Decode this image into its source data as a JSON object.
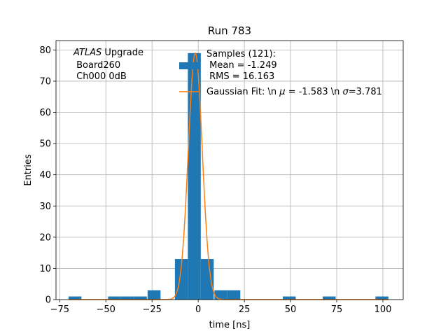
{
  "chart_data": {
    "type": "bar",
    "title": "Run 783",
    "xlabel": "time [ns]",
    "ylabel": "Entries",
    "xlim": [
      -77,
      111
    ],
    "ylim": [
      0,
      83
    ],
    "xticks": [
      -75,
      -50,
      -25,
      0,
      25,
      50,
      75,
      100
    ],
    "xtick_labels": [
      "−75",
      "−50",
      "−25",
      "0",
      "25",
      "50",
      "75",
      "100"
    ],
    "yticks": [
      0,
      10,
      20,
      30,
      40,
      50,
      60,
      70,
      80
    ],
    "ytick_labels": [
      "0",
      "10",
      "20",
      "30",
      "40",
      "50",
      "60",
      "70",
      "80"
    ],
    "grid": true,
    "legend_position": "top-right",
    "histogram": {
      "name": "Samples (121):",
      "color": "#1f77b4",
      "bins": [
        {
          "x0": -70.2,
          "x1": -63.2,
          "count": 1
        },
        {
          "x0": -48.8,
          "x1": -41.8,
          "count": 1
        },
        {
          "x0": -41.8,
          "x1": -34.8,
          "count": 1
        },
        {
          "x0": -34.8,
          "x1": -27.8,
          "count": 1
        },
        {
          "x0": -27.4,
          "x1": -20.4,
          "count": 3
        },
        {
          "x0": -12.6,
          "x1": -5.6,
          "count": 13
        },
        {
          "x0": -5.6,
          "x1": 1.4,
          "count": 79
        },
        {
          "x0": 1.4,
          "x1": 8.4,
          "count": 13
        },
        {
          "x0": 8.8,
          "x1": 15.8,
          "count": 3
        },
        {
          "x0": 15.8,
          "x1": 22.8,
          "count": 3
        },
        {
          "x0": 45.8,
          "x1": 52.8,
          "count": 1
        },
        {
          "x0": 67.4,
          "x1": 74.4,
          "count": 1
        },
        {
          "x0": 96.0,
          "x1": 103.0,
          "count": 1
        }
      ]
    },
    "gaussian_fit": {
      "name": "Gaussian Fit: \\n $\\mu$ = -1.583 \\n $\\sigma$=3.781",
      "mu": -1.583,
      "sigma": 3.781,
      "amplitude": 79,
      "x_range": [
        -70,
        103
      ],
      "color": "#ff7f0e"
    },
    "annotation": {
      "italic": "ATLAS",
      "line1_rest": " Upgrade",
      "line2": " Board260",
      "line3": " Ch000 0dB"
    },
    "legend": {
      "hist_line1": "Samples (121):",
      "hist_line2": " Mean = -1.249",
      "hist_line3": " RMS = 16.163",
      "fit_prefix": "Gaussian Fit: \\n ",
      "fit_mu_symbol": "μ",
      "fit_middle": " = -1.583 \\n ",
      "fit_sigma_symbol": "σ",
      "fit_suffix": "=3.781"
    }
  }
}
